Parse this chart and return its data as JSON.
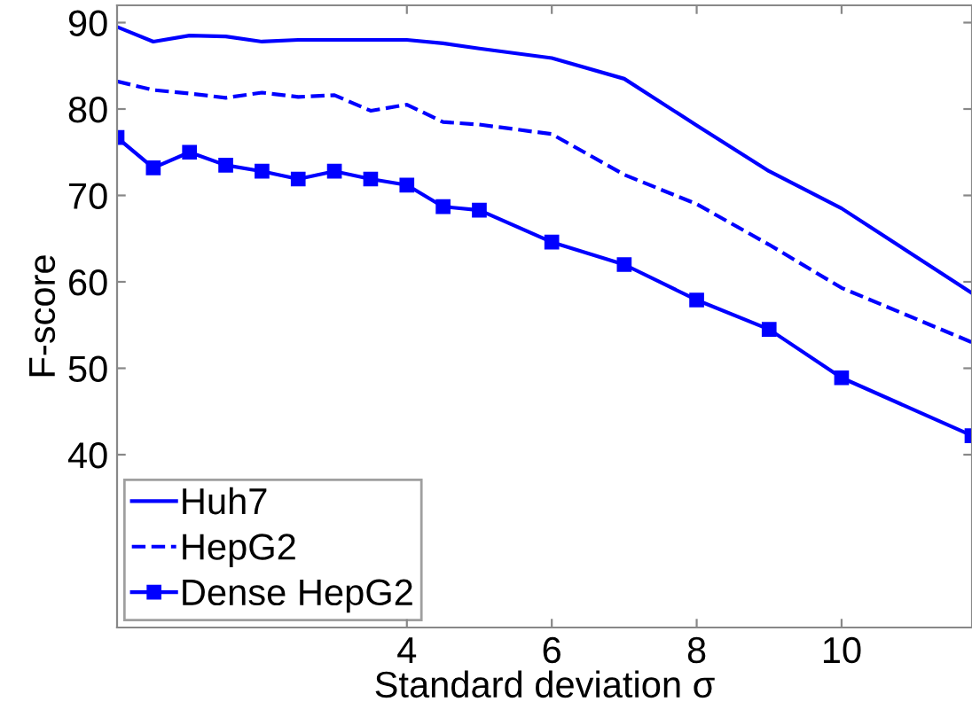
{
  "chart_data": {
    "type": "line",
    "xlabel": "Standard deviation σ",
    "ylabel": "F-score",
    "x": [
      0,
      0.5,
      1,
      1.5,
      2,
      2.5,
      3,
      3.5,
      4,
      4.5,
      5,
      6,
      7,
      8,
      9,
      10,
      11.8
    ],
    "series": [
      {
        "name": "Huh7",
        "color": "#0000ff",
        "line_style": "solid",
        "marker": "none",
        "values": [
          89.5,
          87.8,
          88.5,
          88.4,
          87.8,
          88.0,
          88.0,
          88.0,
          88.0,
          87.6,
          87.0,
          85.9,
          83.5,
          78.1,
          72.8,
          68.5,
          58.7
        ]
      },
      {
        "name": "HepG2",
        "color": "#0000ff",
        "line_style": "dashed",
        "marker": "none",
        "values": [
          83.2,
          82.2,
          81.8,
          81.3,
          81.9,
          81.4,
          81.6,
          79.8,
          80.5,
          78.5,
          78.2,
          77.1,
          72.4,
          69.0,
          64.3,
          59.3,
          53.0
        ]
      },
      {
        "name": "Dense HepG2",
        "color": "#0000ff",
        "line_style": "solid",
        "marker": "square",
        "values": [
          76.7,
          73.2,
          75.0,
          73.5,
          72.8,
          71.9,
          72.8,
          71.9,
          71.2,
          68.7,
          68.3,
          64.6,
          62.0,
          57.9,
          54.5,
          48.9,
          42.2
        ]
      }
    ],
    "xlim": [
      0,
      11.8
    ],
    "xticks": [
      4,
      6,
      8,
      10
    ],
    "ylim": [
      20,
      92
    ],
    "yticks": [
      40,
      50,
      60,
      70,
      80,
      90
    ],
    "grid": false,
    "legend": "bottom left"
  }
}
